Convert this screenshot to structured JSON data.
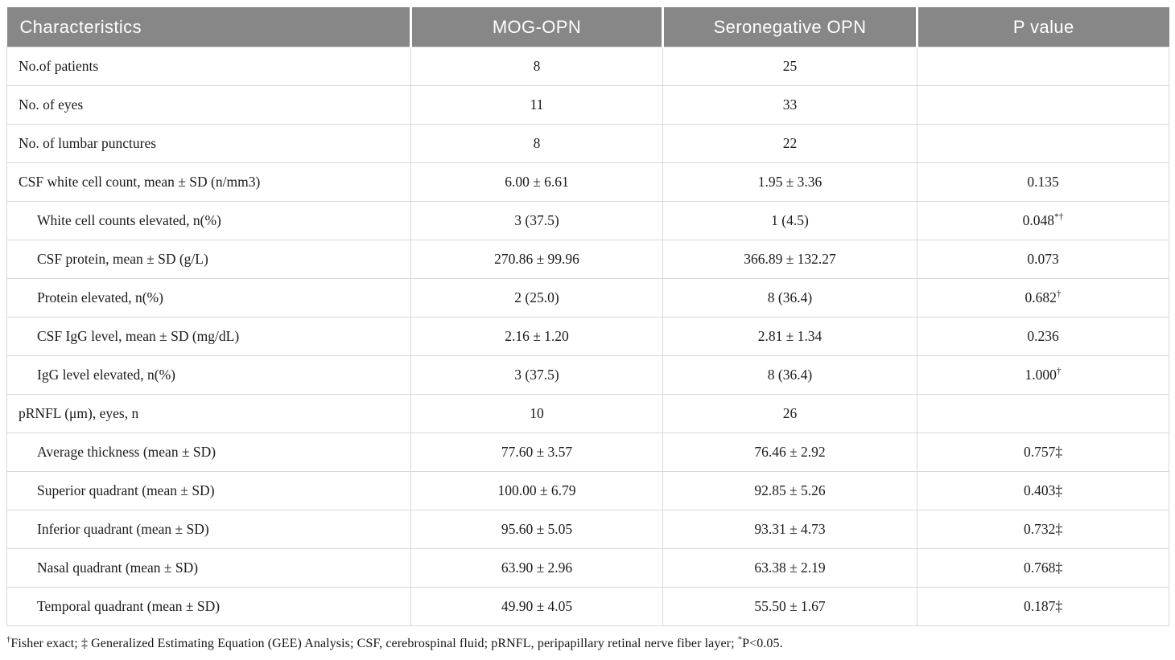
{
  "table": {
    "columns": [
      {
        "label": "Characteristics"
      },
      {
        "label": "MOG-OPN"
      },
      {
        "label": "Seronegative OPN"
      },
      {
        "label": "P value"
      }
    ],
    "rows": [
      {
        "characteristic": "No.of patients",
        "indent": false,
        "mog": "8",
        "sero": "25",
        "p": "",
        "p_sup": ""
      },
      {
        "characteristic": "No. of eyes",
        "indent": false,
        "mog": "11",
        "sero": "33",
        "p": "",
        "p_sup": ""
      },
      {
        "characteristic": "No. of lumbar punctures",
        "indent": false,
        "mog": "8",
        "sero": "22",
        "p": "",
        "p_sup": ""
      },
      {
        "characteristic": "CSF white cell count, mean ± SD (n/mm3)",
        "indent": false,
        "mog": "6.00 ± 6.61",
        "sero": "1.95 ± 3.36",
        "p": "0.135",
        "p_sup": ""
      },
      {
        "characteristic": "White cell counts elevated, n(%)",
        "indent": true,
        "mog": "3 (37.5)",
        "sero": "1 (4.5)",
        "p": "0.048",
        "p_sup": "*†"
      },
      {
        "characteristic": "CSF protein, mean ± SD (g/L)",
        "indent": true,
        "mog": "270.86 ± 99.96",
        "sero": "366.89 ± 132.27",
        "p": "0.073",
        "p_sup": ""
      },
      {
        "characteristic": "Protein elevated, n(%)",
        "indent": true,
        "mog": "2 (25.0)",
        "sero": "8 (36.4)",
        "p": "0.682",
        "p_sup": "†"
      },
      {
        "characteristic": "CSF IgG level, mean ± SD (mg/dL)",
        "indent": true,
        "mog": "2.16 ± 1.20",
        "sero": "2.81 ± 1.34",
        "p": "0.236",
        "p_sup": ""
      },
      {
        "characteristic": "IgG level elevated, n(%)",
        "indent": true,
        "mog": "3 (37.5)",
        "sero": "8 (36.4)",
        "p": "1.000",
        "p_sup": "†"
      },
      {
        "characteristic": "pRNFL (μm), eyes, n",
        "indent": false,
        "mog": "10",
        "sero": "26",
        "p": "",
        "p_sup": ""
      },
      {
        "characteristic": "Average thickness (mean ± SD)",
        "indent": true,
        "mog": "77.60 ± 3.57",
        "sero": "76.46 ± 2.92",
        "p": "0.757‡",
        "p_sup": ""
      },
      {
        "characteristic": "Superior quadrant (mean ± SD)",
        "indent": true,
        "mog": "100.00 ± 6.79",
        "sero": "92.85 ± 5.26",
        "p": "0.403‡",
        "p_sup": ""
      },
      {
        "characteristic": "Inferior quadrant (mean ± SD)",
        "indent": true,
        "mog": "95.60 ± 5.05",
        "sero": "93.31 ± 4.73",
        "p": "0.732‡",
        "p_sup": ""
      },
      {
        "characteristic": "Nasal quadrant (mean ± SD)",
        "indent": true,
        "mog": "63.90 ± 2.96",
        "sero": "63.38 ± 2.19",
        "p": "0.768‡",
        "p_sup": ""
      },
      {
        "characteristic": "Temporal quadrant (mean ± SD)",
        "indent": true,
        "mog": "49.90 ± 4.05",
        "sero": "55.50 ± 1.67",
        "p": "0.187‡",
        "p_sup": ""
      }
    ],
    "footnote": {
      "sup1": "†",
      "part1": "Fisher exact; ‡ Generalized Estimating Equation (GEE) Analysis; CSF, cerebrospinal fluid; pRNFL, peripapillary retinal nerve fiber layer; ",
      "sup2": "*",
      "part2": "P<0.05."
    }
  }
}
